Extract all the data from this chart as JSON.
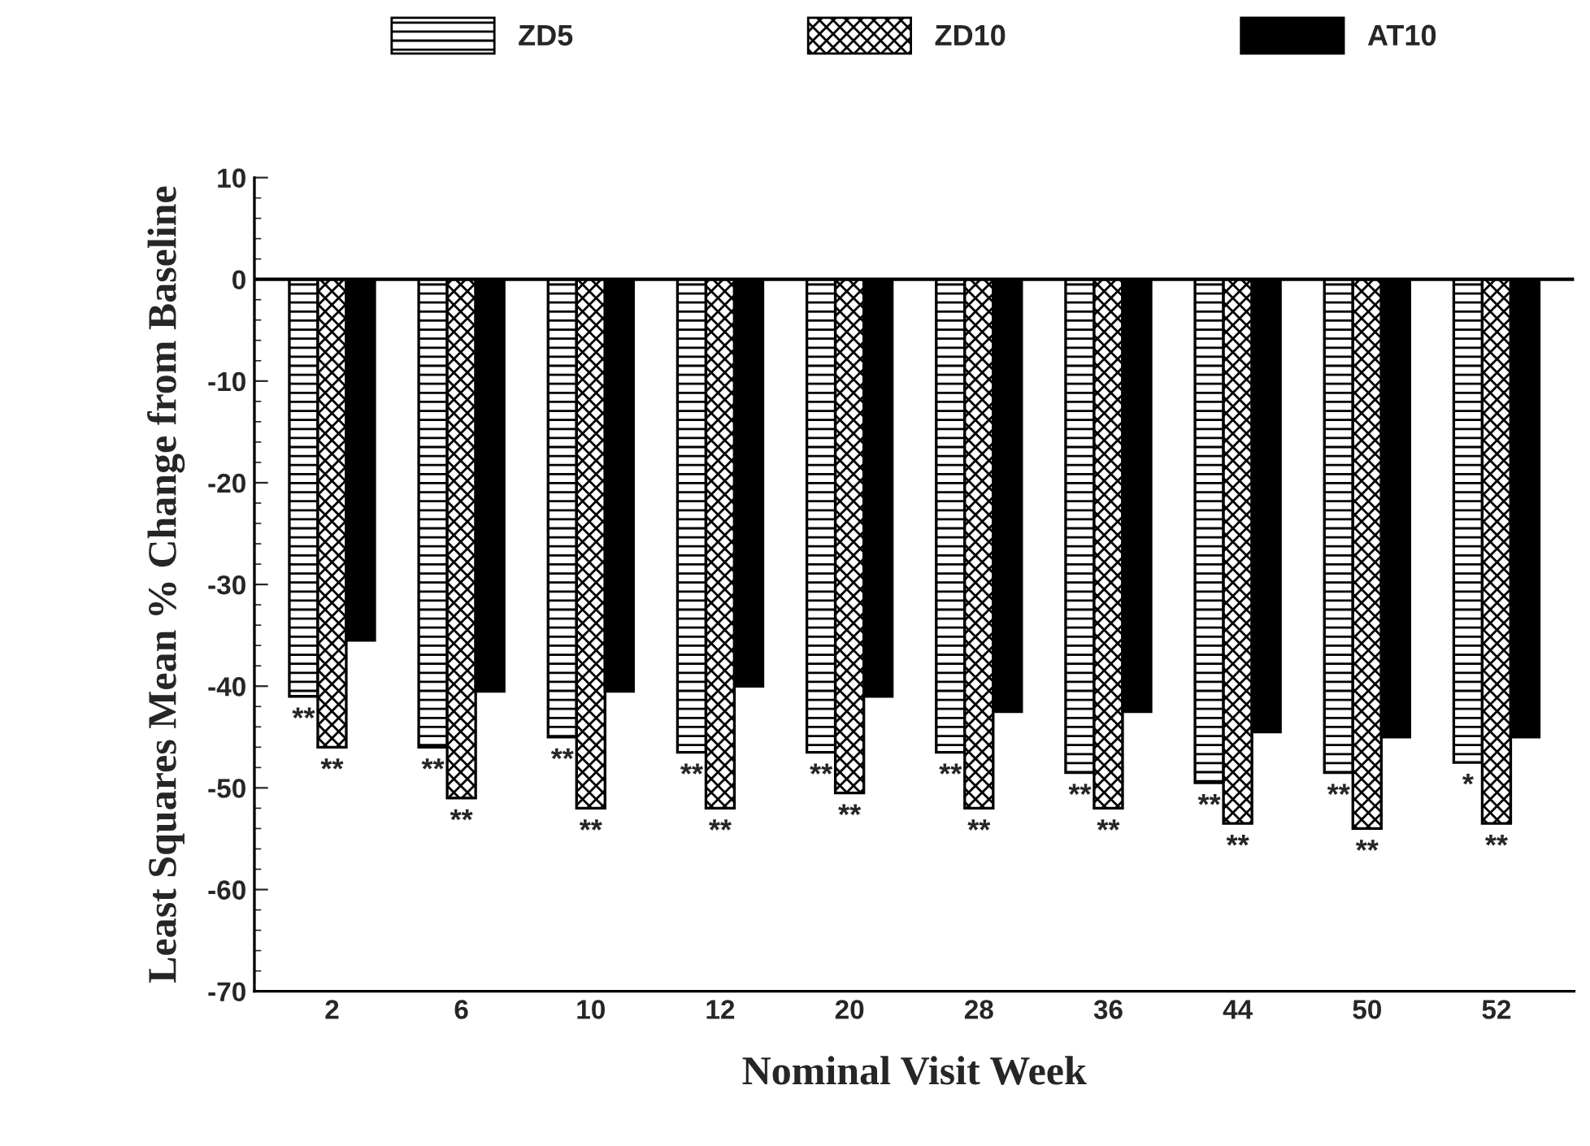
{
  "chart_data": {
    "type": "bar",
    "categories": [
      "2",
      "6",
      "10",
      "12",
      "20",
      "28",
      "36",
      "44",
      "50",
      "52"
    ],
    "series": [
      {
        "name": "ZD5",
        "color": "#000000",
        "values": [
          -41,
          -46,
          -45,
          -46.5,
          -46.5,
          -46.5,
          -48.5,
          -49.5,
          -48.5,
          -47.5
        ],
        "value_labels": [
          "**",
          "**",
          "**",
          "**",
          "**",
          "**",
          "**",
          "**",
          "**",
          "*"
        ]
      },
      {
        "name": "ZD10",
        "color": "#000000",
        "values": [
          -46,
          -51,
          -52,
          -52,
          -50.5,
          -52,
          -52,
          -53.5,
          -54,
          -53.5
        ],
        "value_labels": [
          "**",
          "**",
          "**",
          "**",
          "**",
          "**",
          "**",
          "**",
          "**",
          "**"
        ]
      },
      {
        "name": "AT10",
        "color": "#000000",
        "values": [
          -35.5,
          -40.5,
          -40.5,
          -40,
          -41,
          -42.5,
          -42.5,
          -44.5,
          -45,
          -45
        ]
      }
    ],
    "xlabel": "Nominal Visit Week",
    "ylabel": "Least Squares Mean % Change from Baseline",
    "ylim": [
      -70,
      10
    ],
    "yticks": [
      10,
      0,
      -10,
      -20,
      -30,
      -40,
      -50,
      -60,
      -70
    ],
    "ref_lines": [
      {
        "axis": "y",
        "value": 0,
        "color": "#000000"
      }
    ],
    "legend": "top",
    "grid": false
  }
}
